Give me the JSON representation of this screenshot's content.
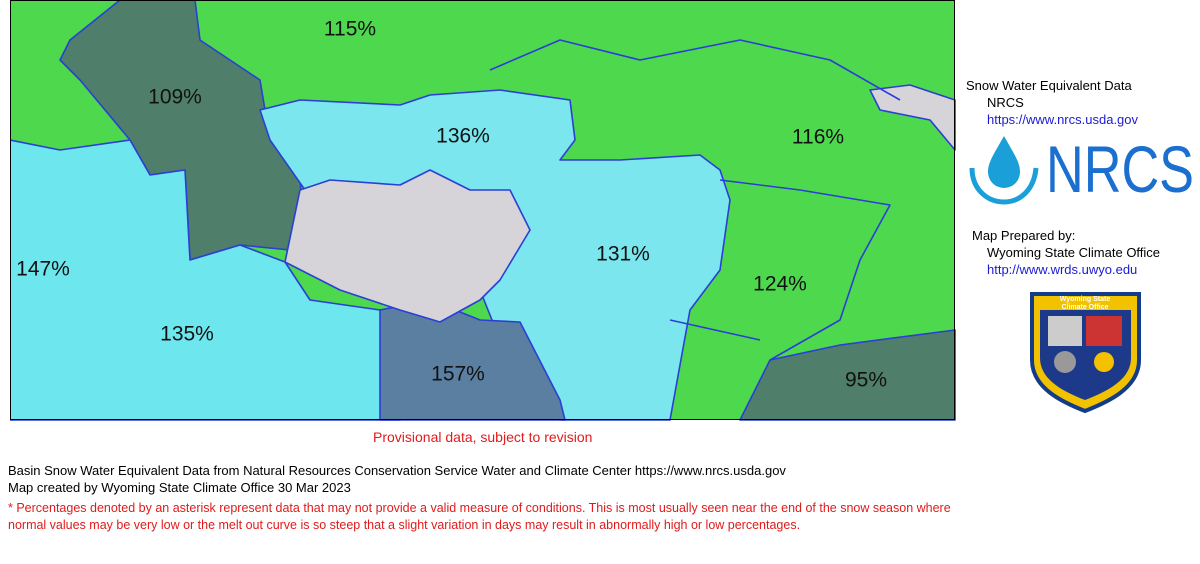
{
  "map": {
    "basins": [
      {
        "label": "115%"
      },
      {
        "label": "109%"
      },
      {
        "label": "136%"
      },
      {
        "label": "116%"
      },
      {
        "label": "147%"
      },
      {
        "label": "131%"
      },
      {
        "label": "124%"
      },
      {
        "label": "135%"
      },
      {
        "label": "157%"
      },
      {
        "label": "95%"
      }
    ]
  },
  "sidebar": {
    "data_title": "Snow Water Equivalent Data",
    "data_source": "NRCS",
    "data_url": "https://www.nrcs.usda.gov",
    "logo": "NRCS",
    "prepared_label": "Map Prepared by:",
    "prepared_by": "Wyoming State Climate Office",
    "prepared_url": "http://www.wrds.uwyo.edu",
    "badge_line1": "Wyoming State",
    "badge_line2": "Climate Office"
  },
  "notice": "Provisional data, subject to revision",
  "footer": {
    "source": "Basin Snow Water Equivalent Data from Natural Resources Conservation Service Water and Climate Center https://www.nrcs.usda.gov",
    "created": "Map created by Wyoming State Climate Office 30 Mar 2023",
    "note": "* Percentages denoted by an asterisk represent data that may not provide a valid measure of conditions.  This is most usually seen near the end of the snow season where normal values may be very low or the melt out curve is so steep that a slight variation in days may result in abnormally high or low percentages."
  }
}
